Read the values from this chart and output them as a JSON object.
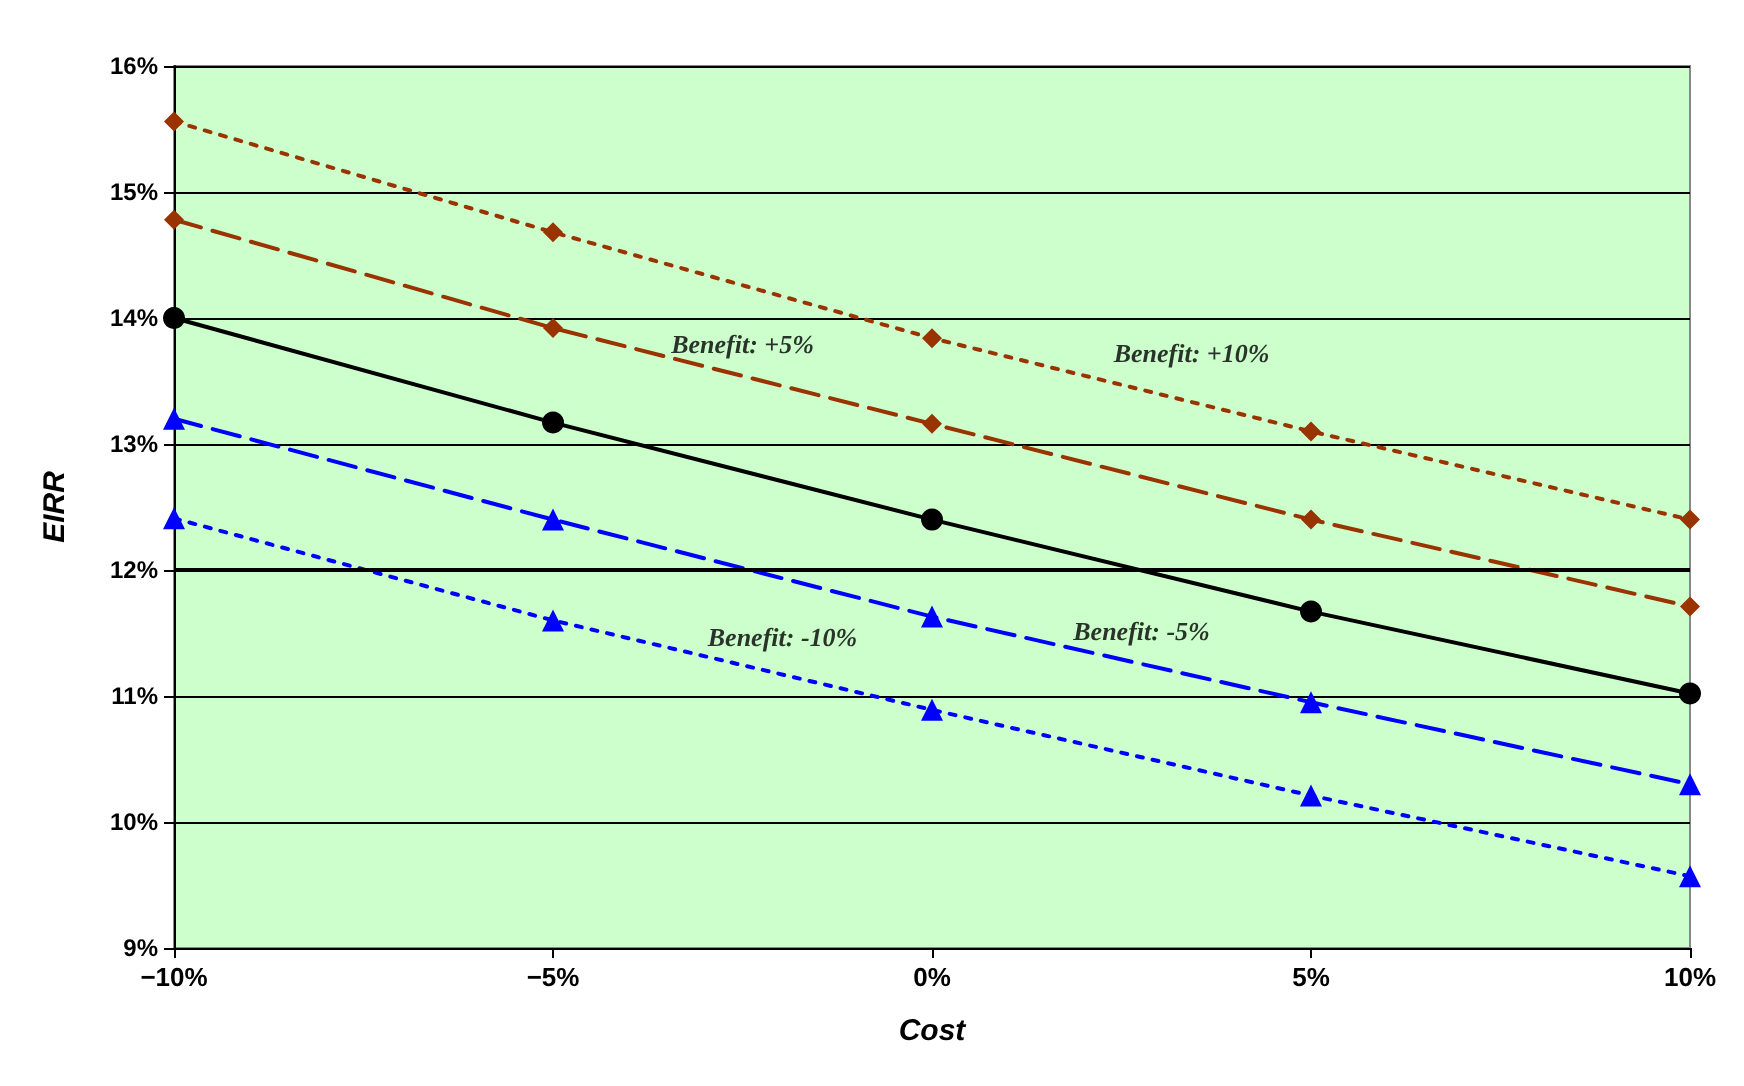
{
  "chart_data": {
    "type": "line",
    "xlabel": "Cost",
    "ylabel": "EIRR",
    "x": [
      -10,
      -5,
      0,
      5,
      10
    ],
    "xlim": [
      -10,
      10
    ],
    "xticks": [
      {
        "value": -10,
        "label": "−10%"
      },
      {
        "value": -5,
        "label": "−5%"
      },
      {
        "value": 0,
        "label": "0%"
      },
      {
        "value": 5,
        "label": "5%"
      },
      {
        "value": 10,
        "label": "10%"
      }
    ],
    "ylim": [
      9,
      16
    ],
    "yticks": [
      {
        "value": 9,
        "label": "9%"
      },
      {
        "value": 10,
        "label": "10%"
      },
      {
        "value": 11,
        "label": "11%"
      },
      {
        "value": 12,
        "label": "12%"
      },
      {
        "value": 13,
        "label": "13%"
      },
      {
        "value": 14,
        "label": "14%"
      },
      {
        "value": 15,
        "label": "15%"
      },
      {
        "value": 16,
        "label": "16%"
      }
    ],
    "grid": "y",
    "legend": false,
    "series": [
      {
        "name": "Benefit: +10%",
        "color": "#993300",
        "marker": "diamond",
        "line_style": "dotted",
        "values": [
          15.56,
          14.68,
          13.84,
          13.1,
          12.4
        ]
      },
      {
        "name": "Benefit: +5%",
        "color": "#993300",
        "marker": "diamond",
        "line_style": "dashed",
        "values": [
          14.78,
          13.92,
          13.16,
          12.4,
          11.71
        ]
      },
      {
        "color": "#000000",
        "marker": "circle",
        "line_style": "solid",
        "values": [
          14.0,
          13.17,
          12.4,
          11.67,
          11.02
        ]
      },
      {
        "name": "Benefit: -5%",
        "color": "#0000ff",
        "marker": "triangle",
        "line_style": "dashed",
        "values": [
          13.2,
          12.4,
          11.63,
          10.95,
          10.3
        ]
      },
      {
        "name": "Benefit: -10%",
        "color": "#0000ff",
        "marker": "triangle",
        "line_style": "dotted",
        "values": [
          12.41,
          11.6,
          10.89,
          10.21,
          9.57
        ]
      }
    ],
    "ref_lines": [
      {
        "axis": "y",
        "value": 12,
        "color": "#000000"
      }
    ]
  }
}
